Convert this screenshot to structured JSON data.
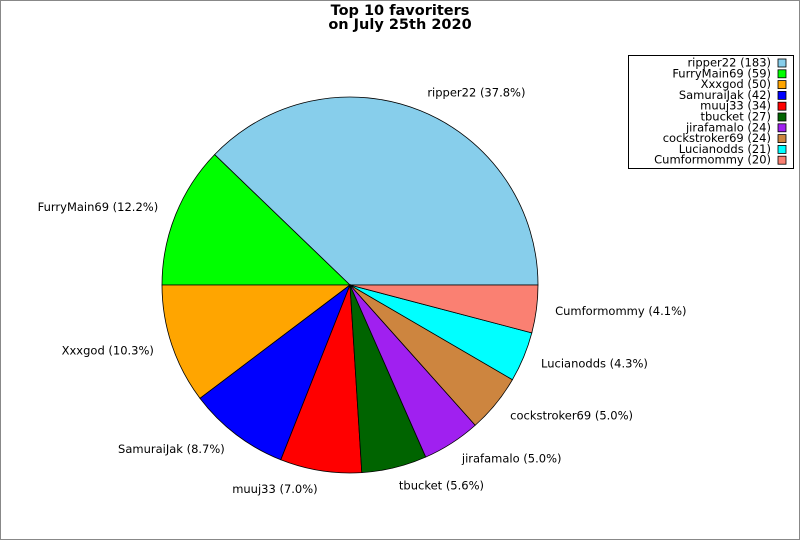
{
  "chart_data": {
    "type": "pie",
    "title": [
      "Top 10 favoriters",
      "on July 25th 2020"
    ],
    "categories": [
      "ripper22 (183)",
      "FurryMain69 (59)",
      "Xxxgod (50)",
      "SamuraiJak (42)",
      "muuj33 (34)",
      "tbucket (27)",
      "jirafamalo (24)",
      "cockstroker69 (24)",
      "Lucianodds (21)",
      "Cumformommy (20)"
    ],
    "values": [
      37.8,
      12.2,
      10.3,
      8.7,
      7.0,
      5.6,
      5.0,
      5.0,
      4.3,
      4.1
    ],
    "value_labels": [
      "ripper22 (37.8%)",
      "FurryMain69 (12.2%)",
      "Xxxgod (10.3%)",
      "SamuraiJak (8.7%)",
      "muuj33 (7.0%)",
      "tbucket (5.6%)",
      "jirafamalo (5.0%)",
      "cockstroker69 (5.0%)",
      "Lucianodds (4.3%)",
      "Cumformommy (4.1%)"
    ],
    "colors": [
      "#87ceeb",
      "#00ff00",
      "#ffa500",
      "#0000ff",
      "#ff0000",
      "#006400",
      "#a020f0",
      "#cd853f",
      "#00ffff",
      "#fa8072"
    ],
    "legend": "upper right"
  }
}
